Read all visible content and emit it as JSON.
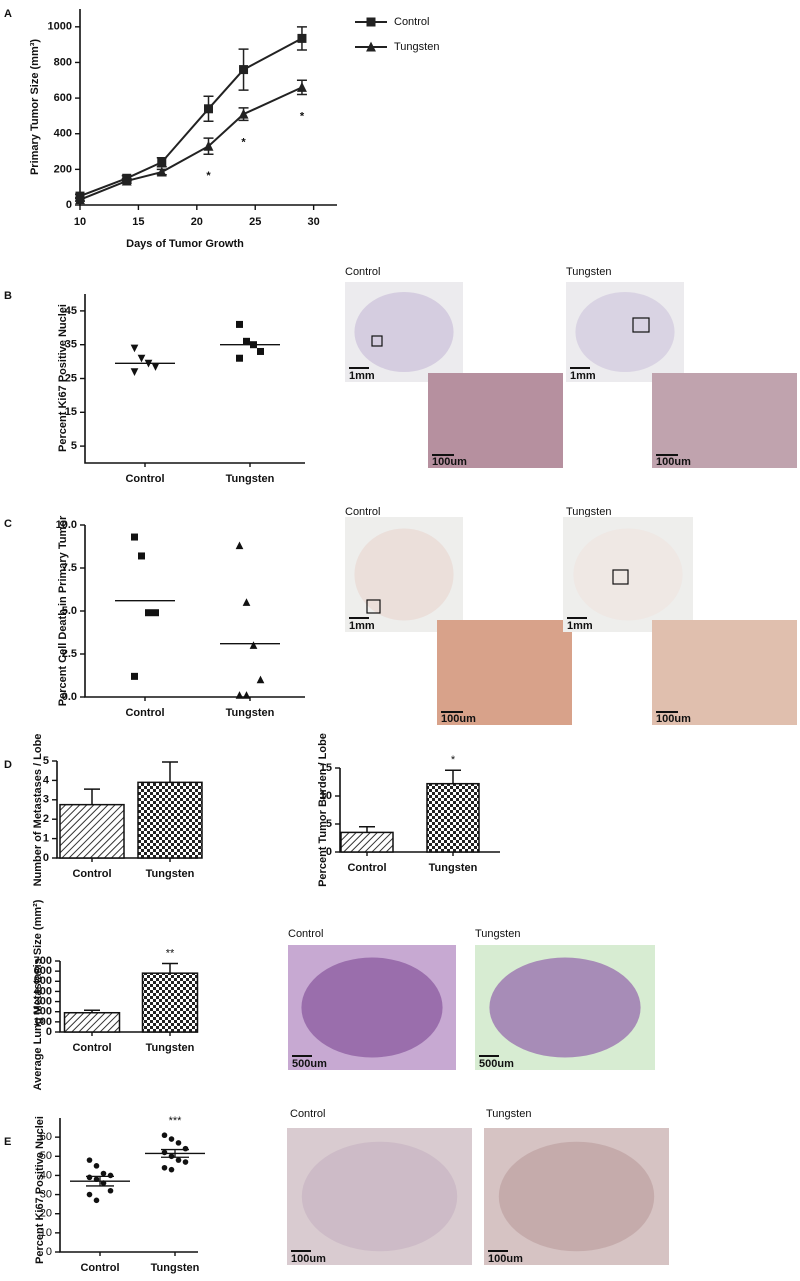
{
  "figure": {
    "panel_labels": [
      "A",
      "B",
      "C",
      "D",
      "E"
    ],
    "images": [
      {
        "caption": "Control",
        "scale": "1mm",
        "zoom_scale": "100um"
      },
      {
        "caption": "Tungsten",
        "scale": "1mm",
        "zoom_scale": "100um"
      },
      {
        "caption": "Control",
        "scale": "1mm",
        "zoom_scale": "100um"
      },
      {
        "caption": "Tungsten",
        "scale": "1mm",
        "zoom_scale": "100um"
      },
      {
        "caption": "Control",
        "scale": "500um"
      },
      {
        "caption": "Tungsten",
        "scale": "500um"
      },
      {
        "caption": "Control",
        "scale": "100um"
      },
      {
        "caption": "Tungsten",
        "scale": "100um"
      }
    ]
  },
  "chart_data": [
    {
      "type": "line",
      "x_label": "Days of Tumor Growth",
      "y_label": "Primary  Tumor Size (mm³)",
      "x": [
        10,
        14,
        17,
        21,
        24,
        29
      ],
      "series": [
        {
          "name": "Control",
          "color": "#222222",
          "marker": "square",
          "values": [
            50,
            150,
            240,
            540,
            760,
            935
          ],
          "errors": [
            10,
            15,
            25,
            70,
            115,
            65
          ]
        },
        {
          "name": "Tungsten",
          "color": "#222222",
          "marker": "triangle",
          "values": [
            30,
            135,
            185,
            330,
            510,
            660
          ],
          "errors": [
            8,
            12,
            15,
            45,
            35,
            40
          ],
          "annotations": [
            null,
            null,
            null,
            "*",
            "*",
            "*"
          ]
        }
      ],
      "xlim": [
        10,
        32
      ],
      "xticks": [
        10,
        15,
        20,
        25,
        30
      ],
      "ylim": [
        0,
        1100
      ],
      "yticks": [
        0,
        200,
        400,
        600,
        800,
        1000
      ]
    },
    {
      "type": "scatter",
      "y_label": "Percent Ki67 Positive Nuclei",
      "categories": [
        "Control",
        "Tungsten"
      ],
      "markers": [
        "triangle-down",
        "square"
      ],
      "points": [
        [
          34,
          31,
          29.5,
          28.5,
          27
        ],
        [
          41,
          36,
          35,
          33,
          31
        ]
      ],
      "mean": [
        29.5,
        35
      ],
      "ylim": [
        0,
        50
      ],
      "yticks": [
        5,
        15,
        25,
        35,
        45
      ]
    },
    {
      "type": "scatter",
      "y_label": "Percent Cell Death in Primary Tumor",
      "categories": [
        "Control",
        "Tungsten"
      ],
      "markers": [
        "square",
        "triangle"
      ],
      "points": [
        [
          9.3,
          8.2,
          4.9,
          4.9,
          1.2
        ],
        [
          8.8,
          5.5,
          3.0,
          1.0,
          0.1,
          0.1
        ]
      ],
      "mean": [
        5.6,
        3.1
      ],
      "ylim": [
        0,
        10
      ],
      "yticks": [
        {
          "value": 0,
          "label": "0.0"
        },
        {
          "value": 2.5,
          "label": "2.5"
        },
        {
          "value": 5,
          "label": "5.0"
        },
        {
          "value": 7.5,
          "label": "7.5"
        },
        {
          "value": 10,
          "label": "10.0"
        }
      ]
    },
    {
      "type": "bar",
      "y_label": "Number of Metastases / Lobe",
      "categories": [
        "Control",
        "Tungsten"
      ],
      "fills": [
        "hatch",
        "check"
      ],
      "values": [
        2.75,
        3.9
      ],
      "errors": [
        0.8,
        1.05
      ],
      "ylim": [
        0,
        5
      ],
      "yticks": [
        0,
        1,
        2,
        3,
        4,
        5
      ]
    },
    {
      "type": "bar",
      "y_label": "Percent Tumor Burden / Lobe",
      "categories": [
        "Control",
        "Tungsten"
      ],
      "fills": [
        "hatch",
        "check"
      ],
      "values": [
        3.5,
        12.2
      ],
      "errors": [
        1.0,
        2.4
      ],
      "value_annotations": [
        null,
        "*"
      ],
      "ylim": [
        0,
        15
      ],
      "yticks": [
        0,
        5,
        10,
        15
      ]
    },
    {
      "type": "bar",
      "y_label": "Average Lung Metastasis Size (mm²)",
      "categories": [
        "Control",
        "Tungsten"
      ],
      "fills": [
        "hatch",
        "check"
      ],
      "values": [
        190,
        580
      ],
      "errors": [
        25,
        95
      ],
      "value_annotations": [
        null,
        "**"
      ],
      "ylim": [
        0,
        700
      ],
      "yticks": [
        0,
        100,
        200,
        300,
        400,
        500,
        600,
        700
      ]
    },
    {
      "type": "scatter",
      "y_label": "Percent Ki67 Positive Nuclei",
      "categories": [
        "Control",
        "Tungsten"
      ],
      "markers": [
        "circle",
        "circle"
      ],
      "points": [
        [
          48,
          45,
          41,
          40,
          39,
          38,
          36,
          32,
          30,
          27
        ],
        [
          61,
          59,
          57,
          54,
          52,
          50,
          48,
          47,
          44,
          43
        ]
      ],
      "mean": [
        37,
        51.5
      ],
      "errors": [
        2.5,
        2
      ],
      "value_annotations": [
        null,
        "***"
      ],
      "ylim": [
        0,
        70
      ],
      "yticks": [
        0,
        10,
        20,
        30,
        40,
        50,
        60
      ]
    }
  ]
}
